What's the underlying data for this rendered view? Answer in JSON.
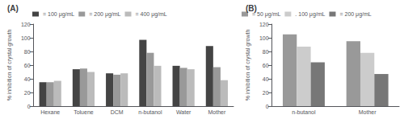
{
  "chart_data": [
    {
      "type": "bar",
      "title": "(A)",
      "categories": [
        "Hexane",
        "Toluene",
        "DCM",
        "n-butanol",
        "Water",
        "Mother"
      ],
      "series": [
        {
          "name": "= 100 μg/mL",
          "color": "#444444",
          "values": [
            35,
            54,
            48,
            97,
            59,
            88
          ]
        },
        {
          "name": "= 200 μg/mL",
          "color": "#999999",
          "values": [
            35,
            55,
            46,
            78,
            56,
            57
          ]
        },
        {
          "name": "= 400 μg/mL",
          "color": "#bbbbbb",
          "values": [
            37,
            50,
            48,
            59,
            54,
            38
          ]
        }
      ],
      "ylabel": "% inhibition of crystal growth",
      "ylim": [
        0,
        120
      ],
      "yticks": [
        0,
        20,
        40,
        60,
        80,
        100,
        120
      ],
      "grid": false,
      "legend": "top"
    },
    {
      "type": "bar",
      "title": "(B)",
      "categories": [
        "n-butanol",
        "Mother"
      ],
      "series": [
        {
          "name": "= 50 μg/mL",
          "color": "#999999",
          "values": [
            105,
            95
          ]
        },
        {
          "name": ". 100 μg/mL",
          "color": "#cccccc",
          "values": [
            87,
            78
          ]
        },
        {
          "name": "= 200 μg/mL",
          "color": "#777777",
          "values": [
            64,
            47
          ]
        }
      ],
      "ylabel": "% inhibition of crystal growth",
      "ylim": [
        0,
        120
      ],
      "yticks": [
        0,
        20,
        40,
        60,
        80,
        100,
        120
      ],
      "grid": false,
      "legend": "top"
    }
  ]
}
